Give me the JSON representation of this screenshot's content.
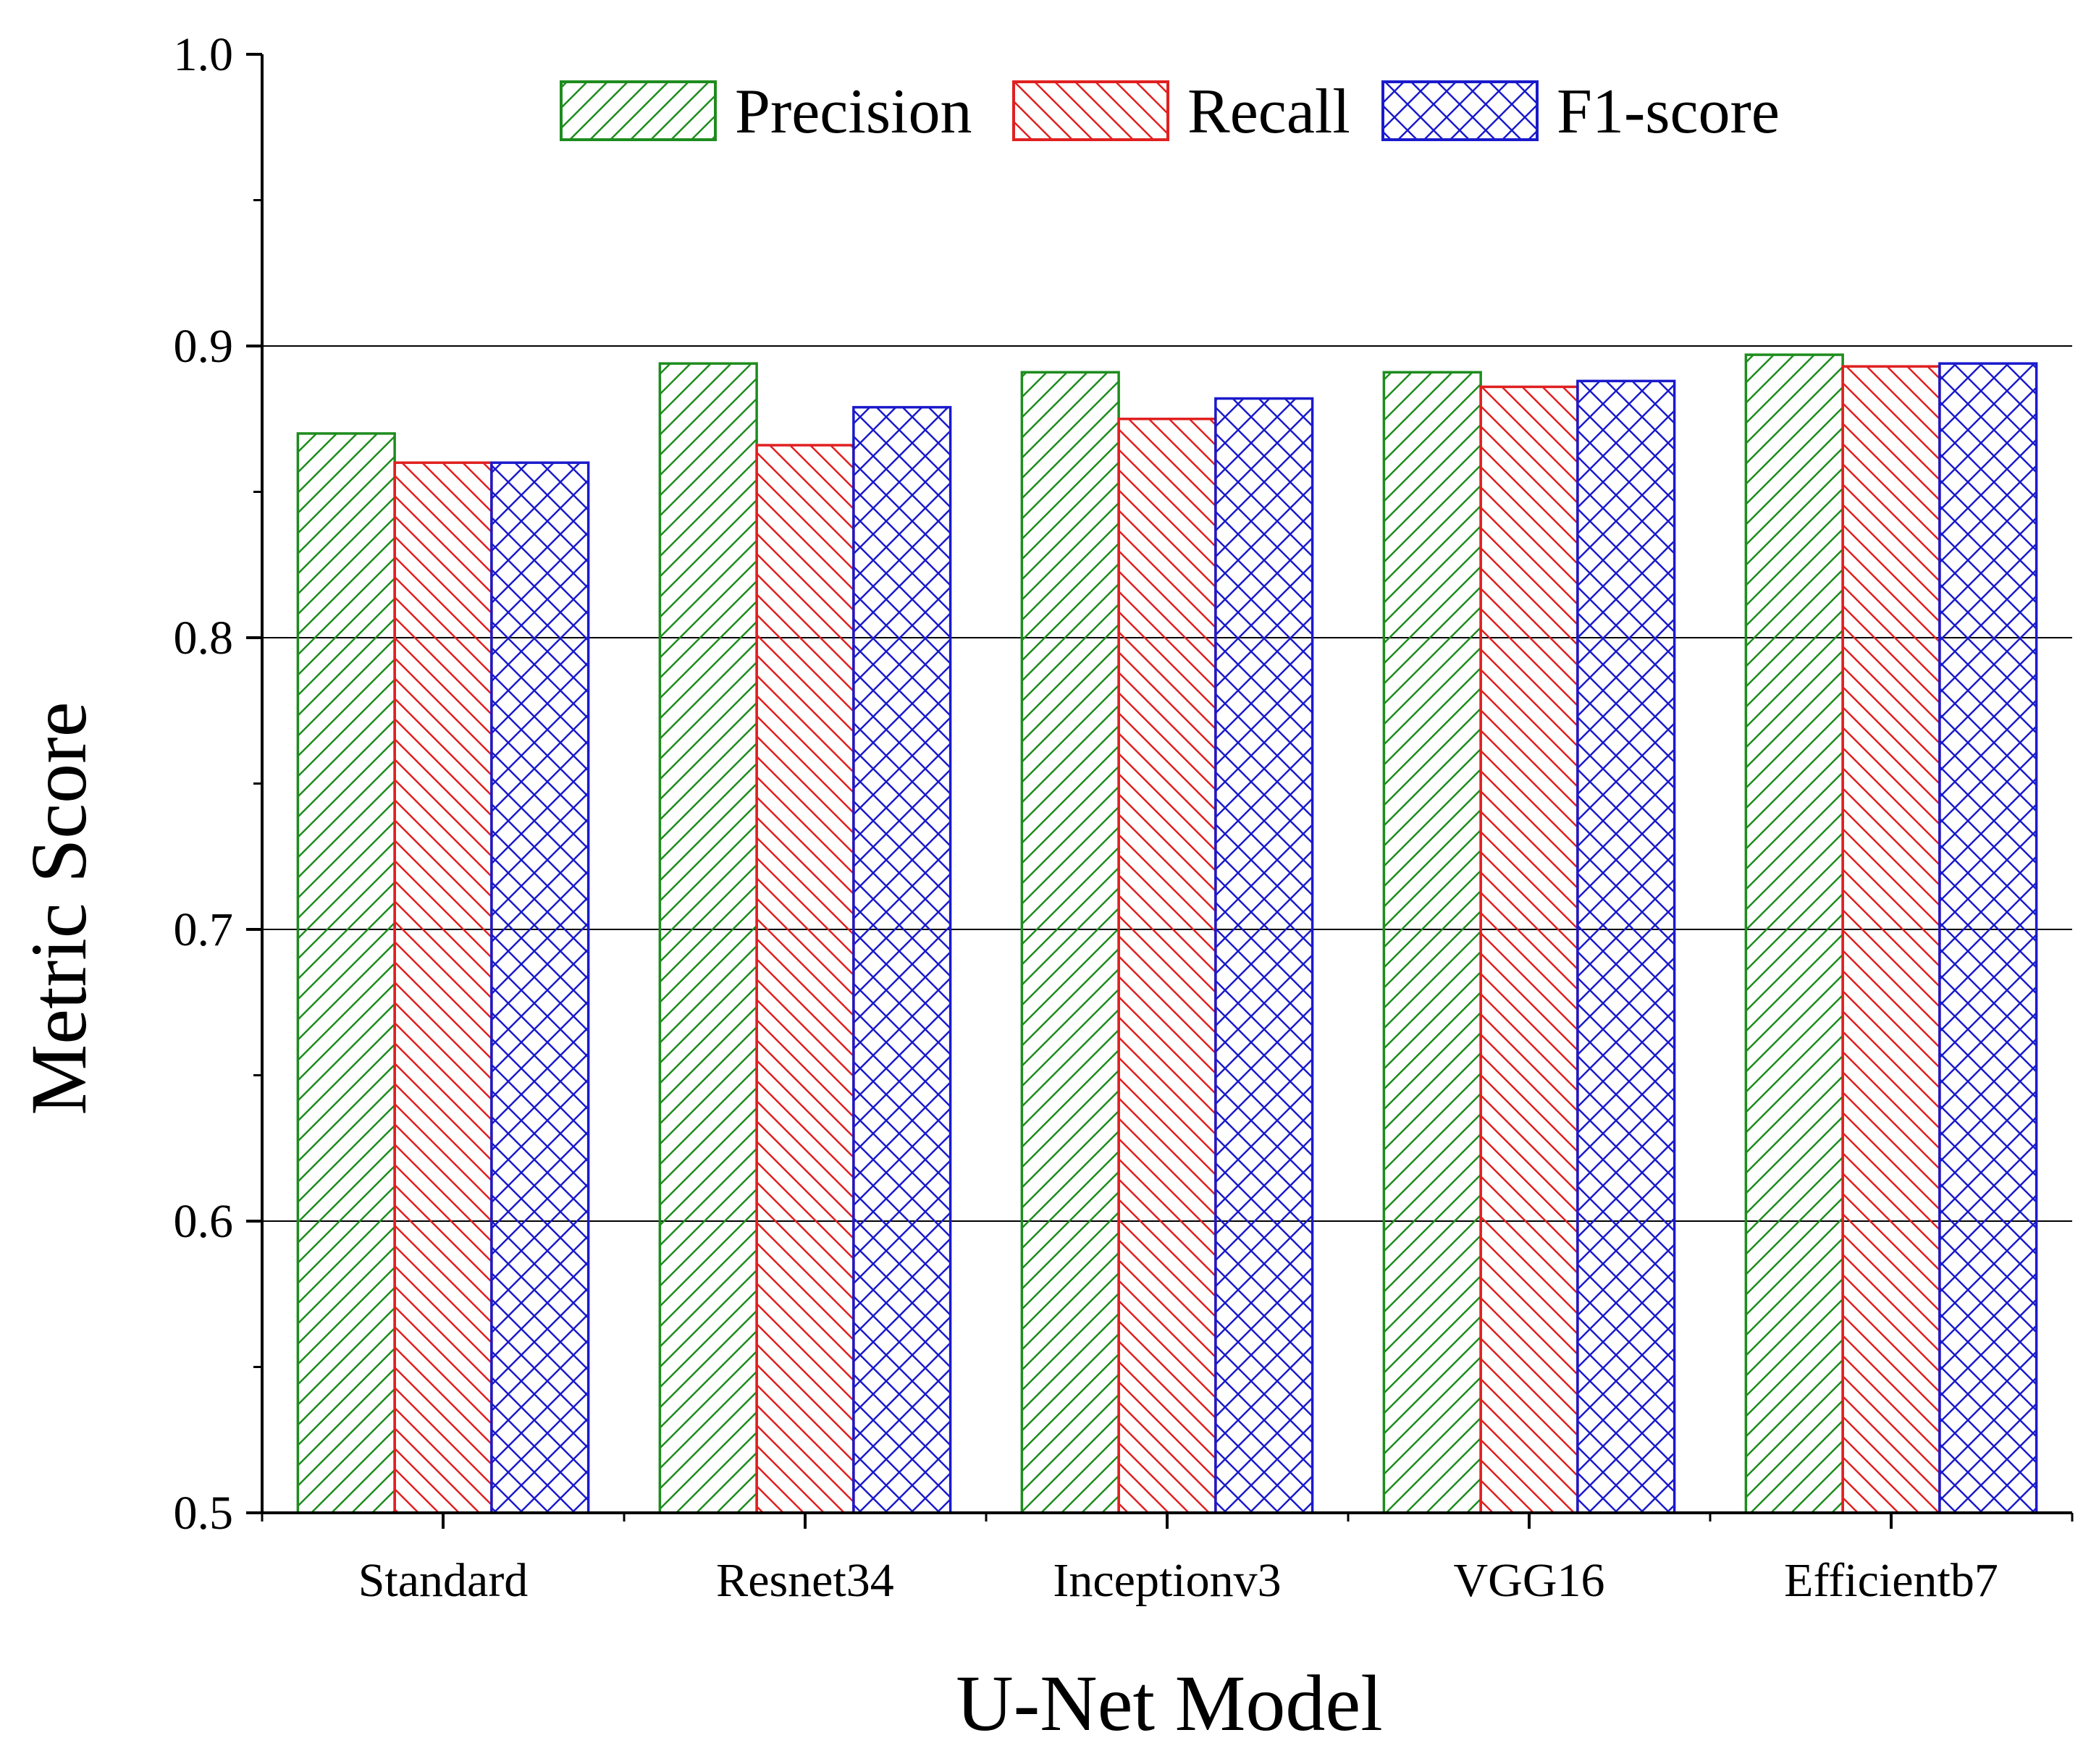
{
  "chart_data": {
    "type": "bar",
    "xlabel": "U-Net Model",
    "ylabel": "Metric Score",
    "ylim": [
      0.5,
      1.0
    ],
    "yticks": [
      "0.5",
      "0.6",
      "0.7",
      "0.8",
      "0.9",
      "1.0"
    ],
    "grid": "horizontal-major",
    "legend_position": "top-center",
    "categories": [
      "Standard",
      "Resnet34",
      "Inceptionv3",
      "VGG16",
      "Efficientb7"
    ],
    "series": [
      {
        "name": "Precision",
        "color": "#1e8c1e",
        "pattern": "diagonal-up",
        "values": [
          0.87,
          0.894,
          0.891,
          0.891,
          0.897
        ]
      },
      {
        "name": "Recall",
        "color": "#e02020",
        "pattern": "diagonal-down",
        "values": [
          0.86,
          0.866,
          0.875,
          0.886,
          0.893
        ]
      },
      {
        "name": "F1-score",
        "color": "#1a1acc",
        "pattern": "crosshatch",
        "values": [
          0.86,
          0.879,
          0.882,
          0.888,
          0.894
        ]
      }
    ]
  }
}
